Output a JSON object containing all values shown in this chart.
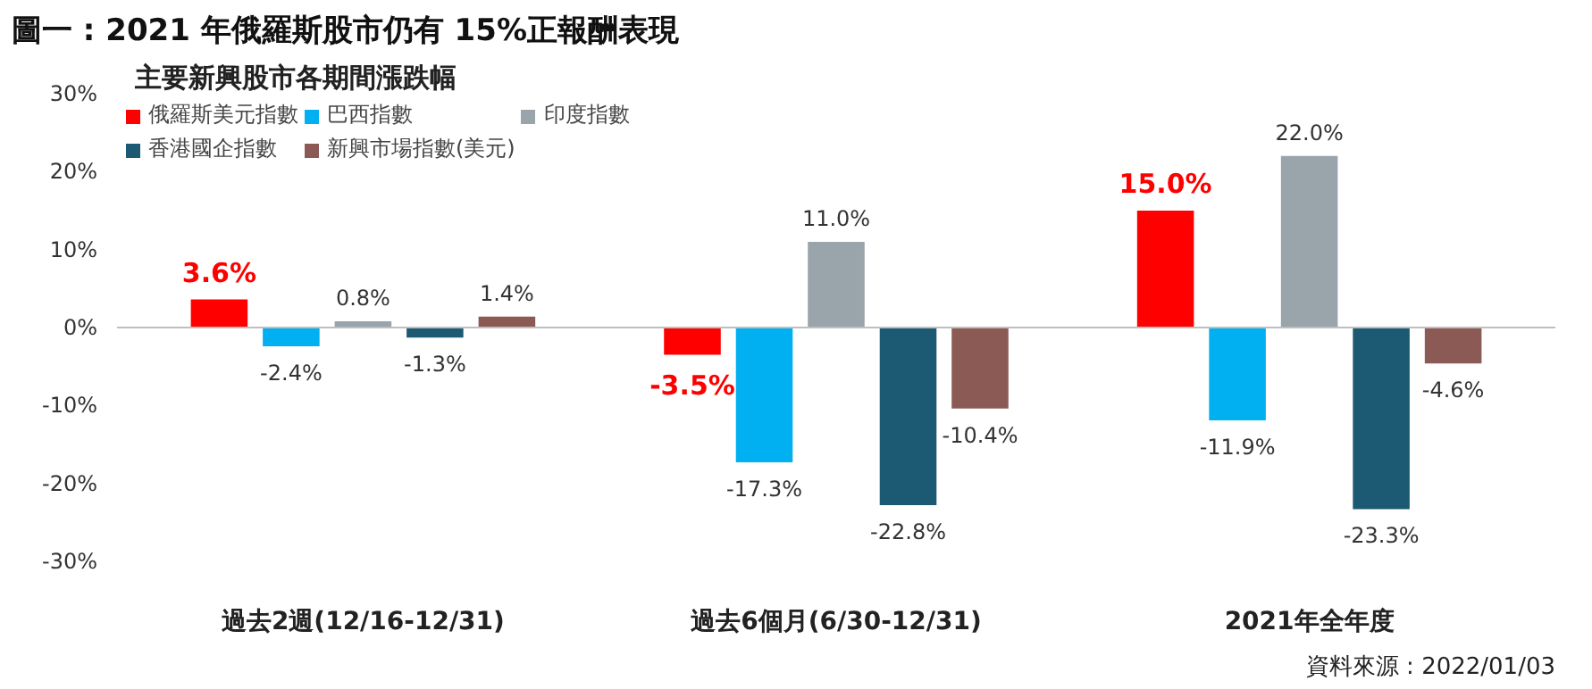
{
  "chart_data": {
    "type": "bar",
    "title": "圖一 : 2021 年俄羅斯股市仍有 15%正報酬表現",
    "subtitle": "主要新興股市各期間漲跌幅",
    "categories": [
      "過去2週(12/16-12/31)",
      "過去6個月(6/30-12/31)",
      "2021年全年度"
    ],
    "series": [
      {
        "name": "俄羅斯美元指數",
        "color": "#ff0000",
        "values": [
          3.6,
          -3.5,
          15.0
        ],
        "value_labels": [
          "3.6%",
          "-3.5%",
          "15.0%"
        ]
      },
      {
        "name": "巴西指數",
        "color": "#00b0f0",
        "values": [
          -2.4,
          -17.3,
          -11.9
        ],
        "value_labels": [
          "-2.4%",
          "-17.3%",
          "-11.9%"
        ]
      },
      {
        "name": "印度指數",
        "color": "#9aa4ab",
        "values": [
          0.8,
          11.0,
          22.0
        ],
        "value_labels": [
          "0.8%",
          "11.0%",
          "22.0%"
        ]
      },
      {
        "name": "香港國企指數",
        "color": "#1b5a72",
        "values": [
          -1.3,
          -22.8,
          -23.3
        ],
        "value_labels": [
          "-1.3%",
          "-22.8%",
          "-23.3%"
        ]
      },
      {
        "name": "新興市場指數(美元)",
        "color": "#8c5a55",
        "values": [
          1.4,
          -10.4,
          -4.6
        ],
        "value_labels": [
          "1.4%",
          "-10.4%",
          "-4.6%"
        ]
      }
    ],
    "ylim": [
      -30,
      30
    ],
    "yticks": [
      {
        "value": -30,
        "label": "-30%"
      },
      {
        "value": -20,
        "label": "-20%"
      },
      {
        "value": -10,
        "label": "-10%"
      },
      {
        "value": 0,
        "label": "0%"
      },
      {
        "value": 10,
        "label": "10%"
      },
      {
        "value": 20,
        "label": "20%"
      },
      {
        "value": 30,
        "label": "30%"
      }
    ],
    "legend": "top left",
    "annotations": [
      "資料來源 : 2022/01/03"
    ]
  }
}
